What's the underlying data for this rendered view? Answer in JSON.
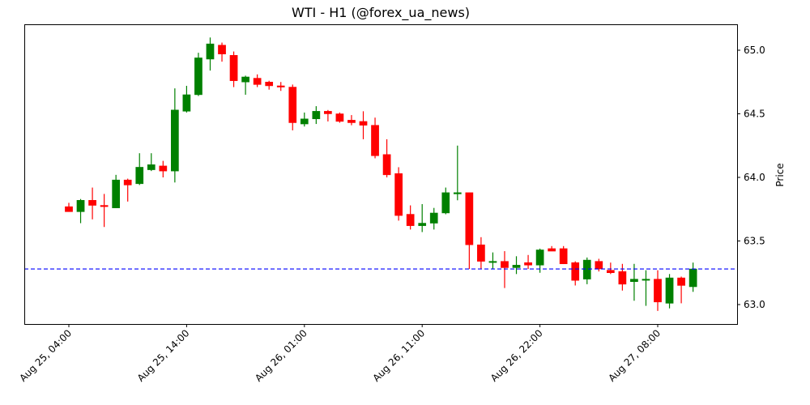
{
  "chart_data": {
    "type": "candlestick",
    "title": "WTI - H1 (@forex_ua_news)",
    "xlabel": "",
    "ylabel": "Price",
    "y_axis_position": "right",
    "ylim": [
      62.83,
      65.2
    ],
    "yticks": [
      63.0,
      63.5,
      64.0,
      64.5,
      65.0
    ],
    "ytick_labels": [
      "63.0",
      "63.5",
      "64.0",
      "64.5",
      "65.0"
    ],
    "xtick_labels": [
      "Aug 25, 04:00",
      "Aug 25, 14:00",
      "Aug 26, 01:00",
      "Aug 26, 11:00",
      "Aug 26, 22:00",
      "Aug 27, 08:00"
    ],
    "xtick_bar_index": [
      0,
      10,
      20,
      30,
      40,
      50
    ],
    "grid": false,
    "reference_line": {
      "price": 63.28,
      "color": "#0000ff",
      "style": "dashed"
    },
    "up_color": "#008000",
    "down_color": "#ff0000",
    "candles": [
      {
        "o": 63.77,
        "h": 63.8,
        "l": 63.73,
        "c": 63.73
      },
      {
        "o": 63.73,
        "h": 63.83,
        "l": 63.64,
        "c": 63.82
      },
      {
        "o": 63.82,
        "h": 63.92,
        "l": 63.67,
        "c": 63.78
      },
      {
        "o": 63.78,
        "h": 63.87,
        "l": 63.61,
        "c": 63.77
      },
      {
        "o": 63.76,
        "h": 64.02,
        "l": 63.76,
        "c": 63.98
      },
      {
        "o": 63.98,
        "h": 63.99,
        "l": 63.81,
        "c": 63.94
      },
      {
        "o": 63.95,
        "h": 64.19,
        "l": 63.94,
        "c": 64.08
      },
      {
        "o": 64.06,
        "h": 64.19,
        "l": 64.05,
        "c": 64.1
      },
      {
        "o": 64.09,
        "h": 64.13,
        "l": 64.0,
        "c": 64.05
      },
      {
        "o": 64.05,
        "h": 64.7,
        "l": 63.96,
        "c": 64.53
      },
      {
        "o": 64.52,
        "h": 64.72,
        "l": 64.51,
        "c": 64.65
      },
      {
        "o": 64.65,
        "h": 64.98,
        "l": 64.64,
        "c": 64.94
      },
      {
        "o": 64.93,
        "h": 65.1,
        "l": 64.84,
        "c": 65.05
      },
      {
        "o": 65.04,
        "h": 65.06,
        "l": 64.91,
        "c": 64.97
      },
      {
        "o": 64.96,
        "h": 64.99,
        "l": 64.71,
        "c": 64.76
      },
      {
        "o": 64.75,
        "h": 64.8,
        "l": 64.65,
        "c": 64.79
      },
      {
        "o": 64.78,
        "h": 64.81,
        "l": 64.71,
        "c": 64.73
      },
      {
        "o": 64.75,
        "h": 64.76,
        "l": 64.69,
        "c": 64.72
      },
      {
        "o": 64.72,
        "h": 64.75,
        "l": 64.68,
        "c": 64.71
      },
      {
        "o": 64.71,
        "h": 64.73,
        "l": 64.37,
        "c": 64.43
      },
      {
        "o": 64.42,
        "h": 64.51,
        "l": 64.4,
        "c": 64.46
      },
      {
        "o": 64.46,
        "h": 64.56,
        "l": 64.42,
        "c": 64.52
      },
      {
        "o": 64.52,
        "h": 64.53,
        "l": 64.44,
        "c": 64.5
      },
      {
        "o": 64.5,
        "h": 64.51,
        "l": 64.43,
        "c": 64.44
      },
      {
        "o": 64.45,
        "h": 64.49,
        "l": 64.41,
        "c": 64.43
      },
      {
        "o": 64.44,
        "h": 64.52,
        "l": 64.3,
        "c": 64.41
      },
      {
        "o": 64.41,
        "h": 64.47,
        "l": 64.15,
        "c": 64.17
      },
      {
        "o": 64.18,
        "h": 64.3,
        "l": 64.0,
        "c": 64.02
      },
      {
        "o": 64.03,
        "h": 64.08,
        "l": 63.66,
        "c": 63.7
      },
      {
        "o": 63.71,
        "h": 63.78,
        "l": 63.59,
        "c": 63.62
      },
      {
        "o": 63.62,
        "h": 63.79,
        "l": 63.57,
        "c": 63.64
      },
      {
        "o": 63.64,
        "h": 63.76,
        "l": 63.59,
        "c": 63.72
      },
      {
        "o": 63.72,
        "h": 63.92,
        "l": 63.71,
        "c": 63.88
      },
      {
        "o": 63.87,
        "h": 64.25,
        "l": 63.82,
        "c": 63.88
      },
      {
        "o": 63.88,
        "h": 63.88,
        "l": 63.28,
        "c": 63.47
      },
      {
        "o": 63.47,
        "h": 63.53,
        "l": 63.28,
        "c": 63.34
      },
      {
        "o": 63.34,
        "h": 63.41,
        "l": 63.28,
        "c": 63.34
      },
      {
        "o": 63.34,
        "h": 63.42,
        "l": 63.13,
        "c": 63.29
      },
      {
        "o": 63.29,
        "h": 63.38,
        "l": 63.24,
        "c": 63.31
      },
      {
        "o": 63.33,
        "h": 63.39,
        "l": 63.28,
        "c": 63.31
      },
      {
        "o": 63.31,
        "h": 63.44,
        "l": 63.25,
        "c": 63.43
      },
      {
        "o": 63.44,
        "h": 63.46,
        "l": 63.42,
        "c": 63.42
      },
      {
        "o": 63.44,
        "h": 63.46,
        "l": 63.32,
        "c": 63.32
      },
      {
        "o": 63.33,
        "h": 63.34,
        "l": 63.15,
        "c": 63.19
      },
      {
        "o": 63.2,
        "h": 63.37,
        "l": 63.16,
        "c": 63.35
      },
      {
        "o": 63.34,
        "h": 63.36,
        "l": 63.26,
        "c": 63.28
      },
      {
        "o": 63.27,
        "h": 63.33,
        "l": 63.24,
        "c": 63.25
      },
      {
        "o": 63.26,
        "h": 63.32,
        "l": 63.11,
        "c": 63.16
      },
      {
        "o": 63.18,
        "h": 63.32,
        "l": 63.03,
        "c": 63.2
      },
      {
        "o": 63.2,
        "h": 63.27,
        "l": 62.99,
        "c": 63.2
      },
      {
        "o": 63.2,
        "h": 63.27,
        "l": 62.95,
        "c": 63.02
      },
      {
        "o": 63.01,
        "h": 63.24,
        "l": 62.97,
        "c": 63.21
      },
      {
        "o": 63.21,
        "h": 63.22,
        "l": 63.01,
        "c": 63.15
      },
      {
        "o": 63.14,
        "h": 63.33,
        "l": 63.1,
        "c": 63.28
      }
    ]
  }
}
